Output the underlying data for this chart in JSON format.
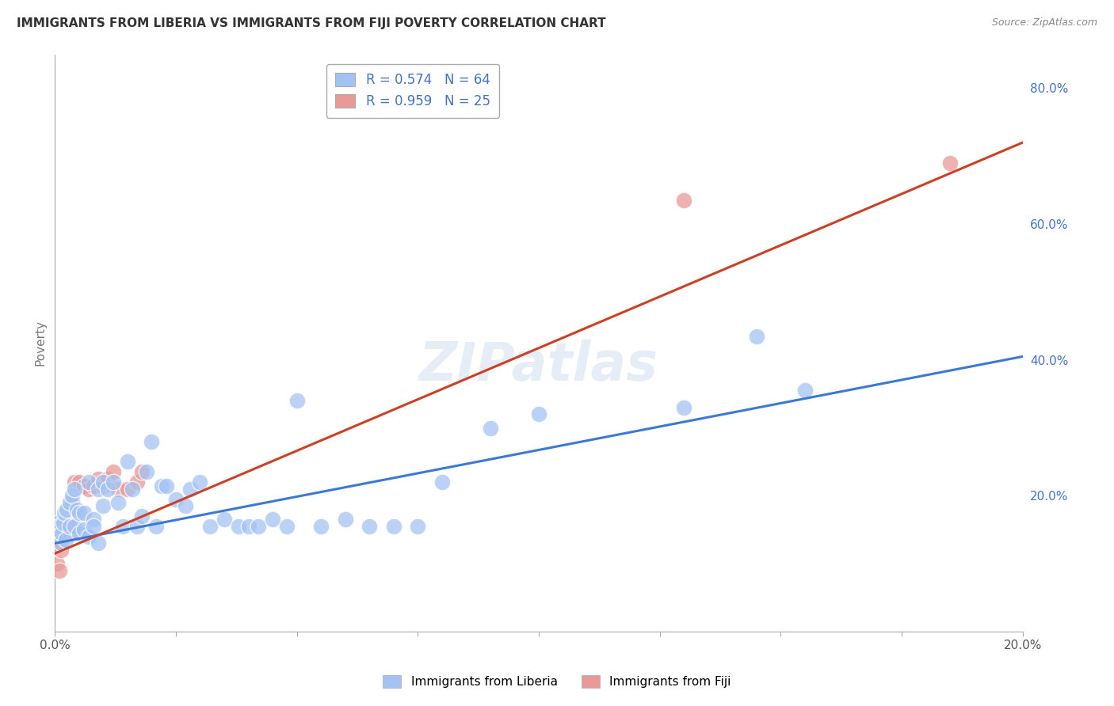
{
  "title": "IMMIGRANTS FROM LIBERIA VS IMMIGRANTS FROM FIJI POVERTY CORRELATION CHART",
  "source": "Source: ZipAtlas.com",
  "ylabel": "Poverty",
  "xlim": [
    0.0,
    0.2
  ],
  "ylim": [
    0.0,
    0.85
  ],
  "yticks": [
    0.2,
    0.4,
    0.6,
    0.8
  ],
  "xticks": [
    0.0,
    0.025,
    0.05,
    0.075,
    0.1,
    0.125,
    0.15,
    0.175,
    0.2
  ],
  "ytick_labels": [
    "20.0%",
    "40.0%",
    "60.0%",
    "80.0%"
  ],
  "blue_color": "#a4c2f4",
  "pink_color": "#ea9999",
  "blue_line_color": "#3c78d8",
  "pink_line_color": "#cc4125",
  "legend_label1": "Immigrants from Liberia",
  "legend_label2": "Immigrants from Fiji",
  "watermark": "ZIPatlas",
  "blue_x": [
    0.0002,
    0.0005,
    0.0008,
    0.001,
    0.0012,
    0.0015,
    0.0018,
    0.002,
    0.0022,
    0.0025,
    0.003,
    0.003,
    0.0035,
    0.004,
    0.004,
    0.0045,
    0.005,
    0.005,
    0.006,
    0.006,
    0.007,
    0.007,
    0.008,
    0.008,
    0.009,
    0.009,
    0.01,
    0.01,
    0.011,
    0.012,
    0.013,
    0.014,
    0.015,
    0.016,
    0.017,
    0.018,
    0.019,
    0.02,
    0.021,
    0.022,
    0.023,
    0.025,
    0.027,
    0.028,
    0.03,
    0.032,
    0.035,
    0.038,
    0.04,
    0.042,
    0.045,
    0.048,
    0.05,
    0.055,
    0.06,
    0.065,
    0.07,
    0.075,
    0.08,
    0.09,
    0.1,
    0.13,
    0.145,
    0.155
  ],
  "blue_y": [
    0.155,
    0.16,
    0.14,
    0.155,
    0.13,
    0.145,
    0.16,
    0.175,
    0.135,
    0.18,
    0.155,
    0.19,
    0.2,
    0.155,
    0.21,
    0.18,
    0.145,
    0.175,
    0.175,
    0.15,
    0.22,
    0.14,
    0.165,
    0.155,
    0.13,
    0.21,
    0.22,
    0.185,
    0.21,
    0.22,
    0.19,
    0.155,
    0.25,
    0.21,
    0.155,
    0.17,
    0.235,
    0.28,
    0.155,
    0.215,
    0.215,
    0.195,
    0.185,
    0.21,
    0.22,
    0.155,
    0.165,
    0.155,
    0.155,
    0.155,
    0.165,
    0.155,
    0.34,
    0.155,
    0.165,
    0.155,
    0.155,
    0.155,
    0.22,
    0.3,
    0.32,
    0.33,
    0.435,
    0.355
  ],
  "pink_x": [
    0.0002,
    0.0005,
    0.0008,
    0.001,
    0.0012,
    0.0015,
    0.002,
    0.0025,
    0.003,
    0.0035,
    0.004,
    0.005,
    0.006,
    0.007,
    0.008,
    0.009,
    0.01,
    0.011,
    0.012,
    0.013,
    0.015,
    0.017,
    0.018,
    0.13,
    0.185
  ],
  "pink_y": [
    0.13,
    0.1,
    0.145,
    0.09,
    0.12,
    0.145,
    0.155,
    0.16,
    0.145,
    0.19,
    0.22,
    0.22,
    0.215,
    0.21,
    0.215,
    0.225,
    0.215,
    0.225,
    0.235,
    0.21,
    0.21,
    0.22,
    0.235,
    0.635,
    0.69
  ],
  "blue_line_x": [
    0.0,
    0.2
  ],
  "blue_line_y": [
    0.13,
    0.405
  ],
  "pink_line_x": [
    0.0,
    0.2
  ],
  "pink_line_y": [
    0.115,
    0.72
  ]
}
